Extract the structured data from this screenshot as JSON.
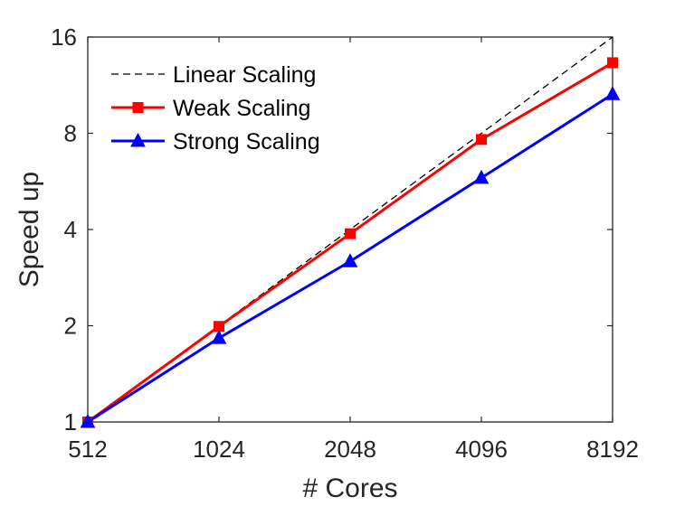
{
  "chart_data": {
    "type": "line",
    "title": "",
    "xlabel": "# Cores",
    "ylabel": "Speed up",
    "x_scale": "log2",
    "y_scale": "log2",
    "x": [
      512,
      1024,
      2048,
      4096,
      8192
    ],
    "x_tick_labels": [
      "512",
      "1024",
      "2048",
      "4096",
      "8192"
    ],
    "y_ticks": [
      1,
      2,
      4,
      8,
      16
    ],
    "y_tick_labels": [
      "1",
      "2",
      "4",
      "8",
      "16"
    ],
    "xlim": [
      512,
      8192
    ],
    "ylim": [
      1,
      16
    ],
    "grid": false,
    "legend_position": "top-left",
    "series": [
      {
        "name": "Linear Scaling",
        "values": [
          1,
          2,
          4,
          8,
          16
        ],
        "color": "#000000",
        "style": "dashed",
        "marker": "none"
      },
      {
        "name": "Weak Scaling",
        "values": [
          1,
          1.99,
          3.88,
          7.65,
          13.3
        ],
        "color": "#ff0000",
        "style": "solid",
        "marker": "square"
      },
      {
        "name": "Strong Scaling",
        "values": [
          1,
          1.83,
          3.18,
          5.8,
          10.6
        ],
        "color": "#0000ff",
        "style": "solid",
        "marker": "triangle"
      }
    ]
  }
}
